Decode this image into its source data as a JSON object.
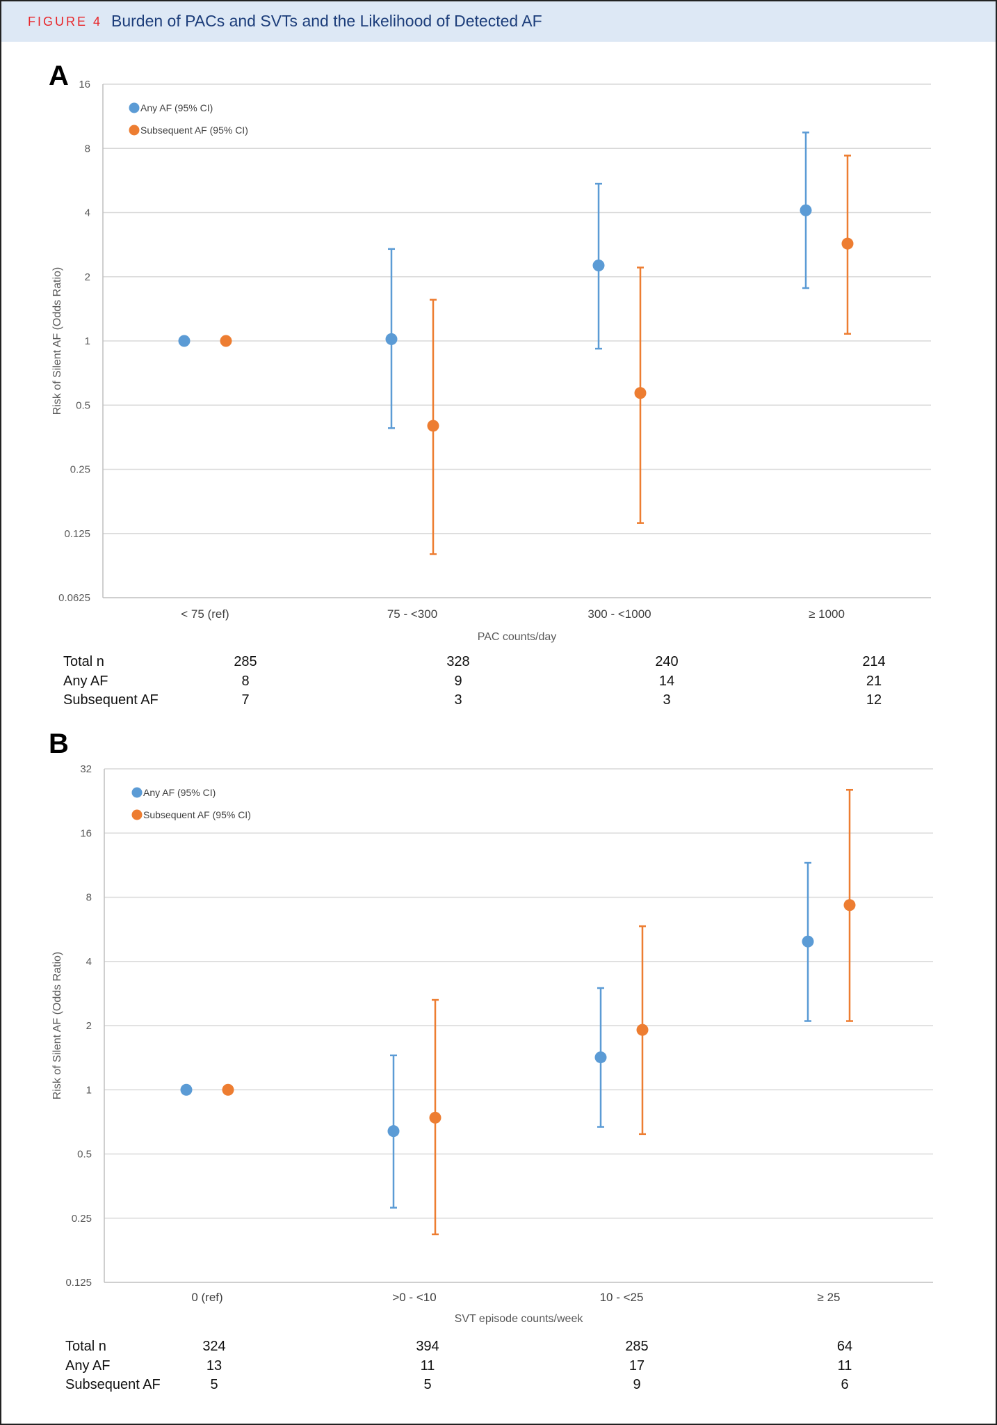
{
  "figure": {
    "label": "FIGURE 4",
    "title": "Burden of PACs and SVTs and the Likelihood of Detected AF"
  },
  "colors": {
    "any_af": "#5b9bd5",
    "subsequent_af": "#ed7d31",
    "header_bg": "#dde8f5",
    "figure_label": "#e8262a",
    "title": "#1c3d7a"
  },
  "chart_data": [
    {
      "panel": "A",
      "type": "scatter",
      "subtype": "point-with-error-bars",
      "ylabel": "Risk of Silent AF (Odds Ratio)",
      "xlabel": "PAC counts/day",
      "yscale": "log2",
      "ylim": [
        0.0625,
        16
      ],
      "yticks": [
        "16",
        "8",
        "4",
        "2",
        "1",
        "0.5",
        "0.25",
        "0.125",
        "0.0625"
      ],
      "ytick_values": [
        16,
        8,
        4,
        2,
        1,
        0.5,
        0.25,
        0.125,
        0.0625
      ],
      "categories": [
        "< 75 (ref)",
        "75 - <300",
        "300 - <1000",
        "≥ 1000"
      ],
      "grid": true,
      "legend_position": "top-left",
      "series": [
        {
          "name": "Any AF (95% CI)",
          "color": "#5b9bd5",
          "values": [
            1,
            1.02,
            2.26,
            4.1
          ],
          "ci_low": [
            null,
            0.39,
            0.92,
            1.77
          ],
          "ci_high": [
            null,
            2.7,
            5.46,
            9.5
          ]
        },
        {
          "name": "Subsequent AF (95% CI)",
          "color": "#ed7d31",
          "values": [
            1,
            0.4,
            0.57,
            2.86
          ],
          "ci_low": [
            null,
            0.1,
            0.14,
            1.08
          ],
          "ci_high": [
            null,
            1.56,
            2.21,
            7.4
          ]
        }
      ],
      "table": {
        "rows": [
          {
            "label": "Total n",
            "values": [
              "285",
              "328",
              "240",
              "214"
            ]
          },
          {
            "label": "Any AF",
            "values": [
              "8",
              "9",
              "14",
              "21"
            ]
          },
          {
            "label": "Subsequent AF",
            "values": [
              "7",
              "3",
              "3",
              "12"
            ]
          }
        ]
      }
    },
    {
      "panel": "B",
      "type": "scatter",
      "subtype": "point-with-error-bars",
      "ylabel": "Risk of Silent AF (Odds Ratio)",
      "xlabel": "SVT episode counts/week",
      "yscale": "log2",
      "ylim": [
        0.125,
        32
      ],
      "yticks": [
        "32",
        "16",
        "8",
        "4",
        "2",
        "1",
        "0.5",
        "0.25",
        "0.125"
      ],
      "ytick_values": [
        32,
        16,
        8,
        4,
        2,
        1,
        0.5,
        0.25,
        0.125
      ],
      "categories": [
        "0 (ref)",
        ">0 - <10",
        "10 - <25",
        "≥ 25"
      ],
      "grid": true,
      "legend_position": "top-left",
      "series": [
        {
          "name": "Any AF (95% CI)",
          "color": "#5b9bd5",
          "values": [
            1,
            0.64,
            1.42,
            4.96
          ],
          "ci_low": [
            null,
            0.28,
            0.67,
            2.1
          ],
          "ci_high": [
            null,
            1.45,
            3.0,
            11.6
          ]
        },
        {
          "name": "Subsequent AF (95% CI)",
          "color": "#ed7d31",
          "values": [
            1,
            0.74,
            1.91,
            7.35
          ],
          "ci_low": [
            null,
            0.21,
            0.62,
            2.1
          ],
          "ci_high": [
            null,
            2.64,
            5.85,
            25.5
          ]
        }
      ],
      "table": {
        "rows": [
          {
            "label": "Total n",
            "values": [
              "324",
              "394",
              "285",
              "64"
            ]
          },
          {
            "label": "Any AF",
            "values": [
              "13",
              "11",
              "17",
              "11"
            ]
          },
          {
            "label": "Subsequent AF",
            "values": [
              "5",
              "5",
              "9",
              "6"
            ]
          }
        ]
      }
    }
  ]
}
